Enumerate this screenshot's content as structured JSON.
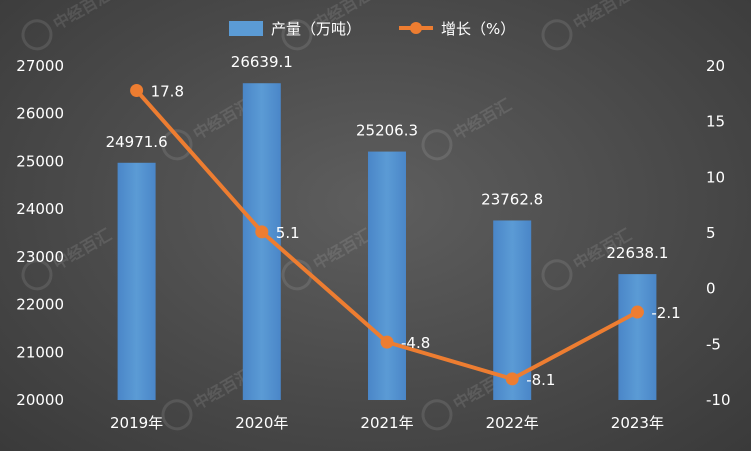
{
  "chart_data": {
    "type": "bar+line",
    "categories": [
      "2019年",
      "2020年",
      "2021年",
      "2022年",
      "2023年"
    ],
    "series": [
      {
        "name": "产量（万吨）",
        "type": "bar",
        "axis": "left",
        "values": [
          24971.6,
          26639.1,
          25206.3,
          23762.8,
          22638.1
        ],
        "labels": [
          "24971.6",
          "26639.1",
          "25206.3",
          "23762.8",
          "22638.1"
        ],
        "color": "#5b9bd5"
      },
      {
        "name": "增长（%）",
        "type": "line",
        "axis": "right",
        "values": [
          17.8,
          5.1,
          -4.8,
          -8.1,
          -2.1
        ],
        "labels": [
          "17.8",
          "5.1",
          "-4.8",
          "-8.1",
          "-2.1"
        ],
        "color": "#ed7d31"
      }
    ],
    "y_left": {
      "min": 20000,
      "max": 27000,
      "step": 1000,
      "ticks": [
        "20000",
        "21000",
        "22000",
        "23000",
        "24000",
        "25000",
        "26000",
        "27000"
      ]
    },
    "y_right": {
      "min": -10,
      "max": 20,
      "step": 5,
      "ticks": [
        "-10",
        "-5",
        "0",
        "5",
        "10",
        "15",
        "20"
      ]
    },
    "legend_position": "top-center",
    "grid": false
  },
  "watermark": {
    "text": "中经百汇"
  }
}
